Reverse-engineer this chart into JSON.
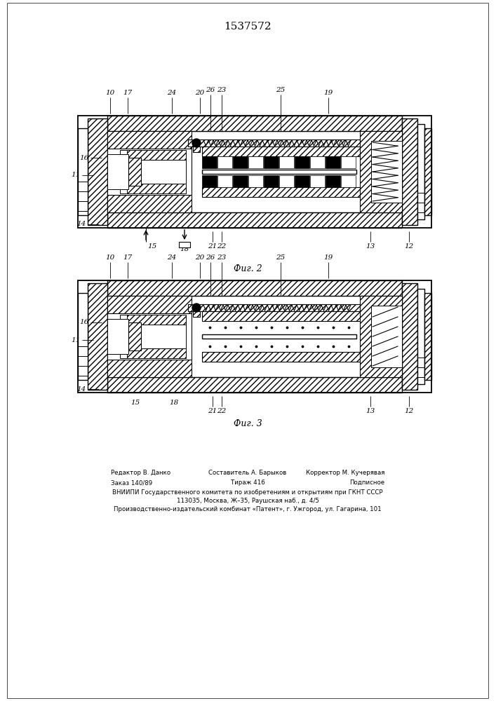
{
  "title": "1537572",
  "background_color": "#ffffff",
  "fig_width": 7.07,
  "fig_height": 10.0,
  "dpi": 100,
  "fig2_caption": "Фиг. 2",
  "fig3_caption": "Фиг. 3",
  "footer_line1_left": "Редактор В. Данко",
  "footer_line1_center": "Составитель А. Барыков",
  "footer_line1_right": "Корректор М. Кучерявая",
  "footer_line2_left": "Заказ 140/89",
  "footer_line2_center": "Тираж 416",
  "footer_line2_right": "Подписное",
  "footer_line3": "ВНИИПИ Государственного комитета по изобретениям и открытиям при ГКНТ СССР",
  "footer_line4": "113035, Москва, Ж–35, Раушская наб., д. 4/5",
  "footer_line5": "Производственно-издательский комбинат «Патент», г. Ужгород, ул. Гагарина, 101"
}
